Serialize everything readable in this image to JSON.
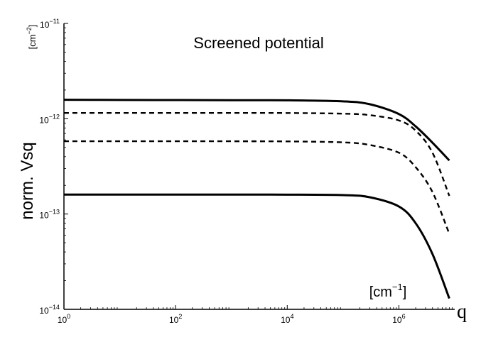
{
  "chart_data": {
    "type": "line",
    "title": "Screened potential",
    "ylabel": "norm. Vsq",
    "xlabel": "q",
    "y_unit": {
      "base": "[cm",
      "exp": "−2",
      "close": "]"
    },
    "x_unit": {
      "base": "[cm",
      "exp": "−1",
      "close": "]"
    },
    "xscale": "log",
    "yscale": "log",
    "xlim": [
      1,
      10000000.0
    ],
    "ylim": [
      1e-14,
      1e-11
    ],
    "x_ticks": [
      {
        "value": 1,
        "base": "10",
        "exp": "0"
      },
      {
        "value": 100,
        "base": "10",
        "exp": "2"
      },
      {
        "value": 10000,
        "base": "10",
        "exp": "4"
      },
      {
        "value": 1000000,
        "base": "10",
        "exp": "6"
      }
    ],
    "y_ticks": [
      {
        "value": 1e-14,
        "base": "10",
        "exp": "−14"
      },
      {
        "value": 1e-13,
        "base": "10",
        "exp": "−13"
      },
      {
        "value": 1e-12,
        "base": "10",
        "exp": "−12"
      },
      {
        "value": 1e-11,
        "base": "10",
        "exp": "−11"
      }
    ],
    "grid": false,
    "legend": "none",
    "series": [
      {
        "style": "solid",
        "color": "#000000",
        "x": [
          1,
          10,
          100,
          1000,
          10000,
          100000,
          300000,
          1000000,
          2000000,
          4000000,
          8000000
        ],
        "y": [
          1.58e-12,
          1.575e-12,
          1.57e-12,
          1.565e-12,
          1.56e-12,
          1.52e-12,
          1.42e-12,
          1.12e-12,
          8.3e-13,
          5.6e-13,
          3.65e-13
        ]
      },
      {
        "style": "dashed",
        "color": "#000000",
        "x": [
          1,
          10,
          100,
          1000,
          10000,
          100000,
          300000,
          1000000,
          2000000,
          4000000,
          8000000
        ],
        "y": [
          1.15e-12,
          1.15e-12,
          1.15e-12,
          1.15e-12,
          1.148e-12,
          1.13e-12,
          1.09e-12,
          9.6e-13,
          7.5e-13,
          4.4e-13,
          1.55e-13
        ]
      },
      {
        "style": "dashed",
        "color": "#000000",
        "x": [
          1,
          10,
          100,
          1000,
          10000,
          100000,
          300000,
          1000000,
          2000000,
          4000000,
          8000000
        ],
        "y": [
          5.8e-13,
          5.8e-13,
          5.8e-13,
          5.8e-13,
          5.78e-13,
          5.65e-13,
          5.3e-13,
          4.4e-13,
          3.1e-13,
          1.7e-13,
          6.2e-14
        ]
      },
      {
        "style": "solid",
        "color": "#000000",
        "x": [
          1,
          10,
          100,
          1000,
          10000,
          100000,
          300000,
          1000000,
          2000000,
          4000000,
          8000000
        ],
        "y": [
          1.6e-13,
          1.6e-13,
          1.6e-13,
          1.6e-13,
          1.598e-13,
          1.58e-13,
          1.5e-13,
          1.2e-13,
          8e-14,
          3.8e-14,
          1.3e-14
        ]
      }
    ]
  }
}
